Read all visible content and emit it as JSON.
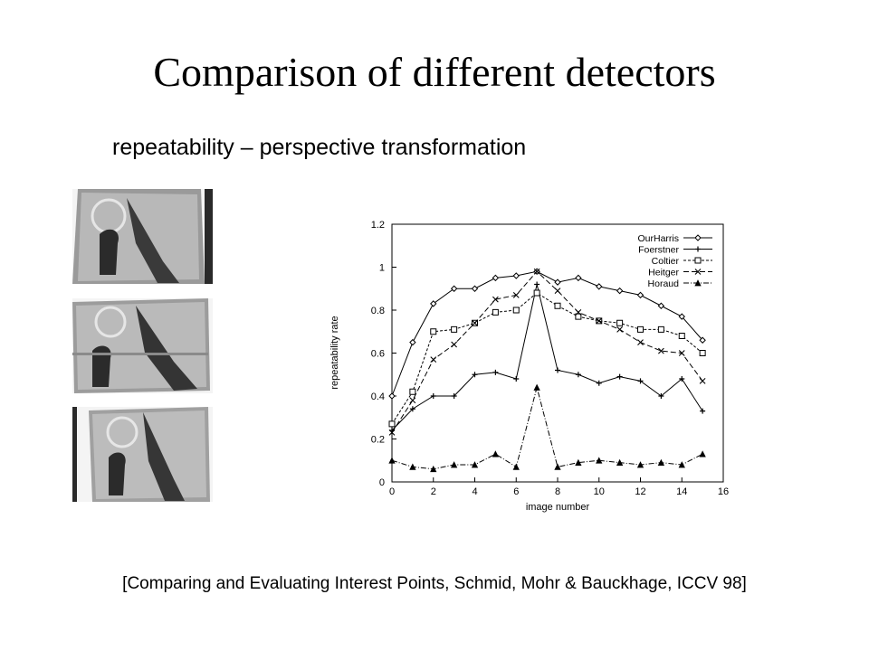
{
  "slide": {
    "title": "Comparison of different detectors",
    "subtitle": "repeatability – perspective transformation",
    "citation": "[Comparing and Evaluating Interest Points, Schmid, Mohr & Bauckhage, ICCV 98]"
  },
  "chart_data": {
    "type": "line",
    "title": "",
    "xlabel": "image number",
    "ylabel": "repeatability rate",
    "xlim": [
      0,
      16
    ],
    "ylim": [
      0,
      1.2
    ],
    "xticks": [
      "0",
      "2",
      "4",
      "6",
      "8",
      "10",
      "12",
      "14",
      "16"
    ],
    "yticks": [
      "0",
      "0.2",
      "0.4",
      "0.6",
      "0.8",
      "1",
      "1.2"
    ],
    "grid": false,
    "legend_position": "top-right",
    "x": [
      0,
      1,
      2,
      3,
      4,
      5,
      6,
      7,
      8,
      9,
      10,
      11,
      12,
      13,
      14,
      15
    ],
    "series": [
      {
        "name": "OurHarris",
        "marker": "diamond",
        "dash": "",
        "values": [
          0.4,
          0.65,
          0.83,
          0.9,
          0.9,
          0.95,
          0.96,
          0.98,
          0.93,
          0.95,
          0.91,
          0.89,
          0.87,
          0.82,
          0.77,
          0.66
        ]
      },
      {
        "name": "Foerstner",
        "marker": "plus",
        "dash": "",
        "values": [
          0.24,
          0.34,
          0.4,
          0.4,
          0.5,
          0.51,
          0.48,
          0.92,
          0.52,
          0.5,
          0.46,
          0.49,
          0.47,
          0.4,
          0.48,
          0.33
        ]
      },
      {
        "name": "Coltier",
        "marker": "square",
        "dash": "3,2",
        "values": [
          0.27,
          0.42,
          0.7,
          0.71,
          0.74,
          0.79,
          0.8,
          0.88,
          0.82,
          0.77,
          0.75,
          0.74,
          0.71,
          0.71,
          0.68,
          0.6
        ]
      },
      {
        "name": "Heitger",
        "marker": "x",
        "dash": "6,3",
        "values": [
          0.23,
          0.38,
          0.57,
          0.64,
          0.74,
          0.85,
          0.87,
          0.98,
          0.89,
          0.79,
          0.75,
          0.71,
          0.65,
          0.61,
          0.6,
          0.47
        ]
      },
      {
        "name": "Horaud",
        "marker": "triangle",
        "dash": "6,2,1,2",
        "values": [
          0.1,
          0.07,
          0.06,
          0.08,
          0.08,
          0.13,
          0.07,
          0.44,
          0.07,
          0.09,
          0.1,
          0.09,
          0.08,
          0.09,
          0.08,
          0.13
        ]
      }
    ]
  }
}
